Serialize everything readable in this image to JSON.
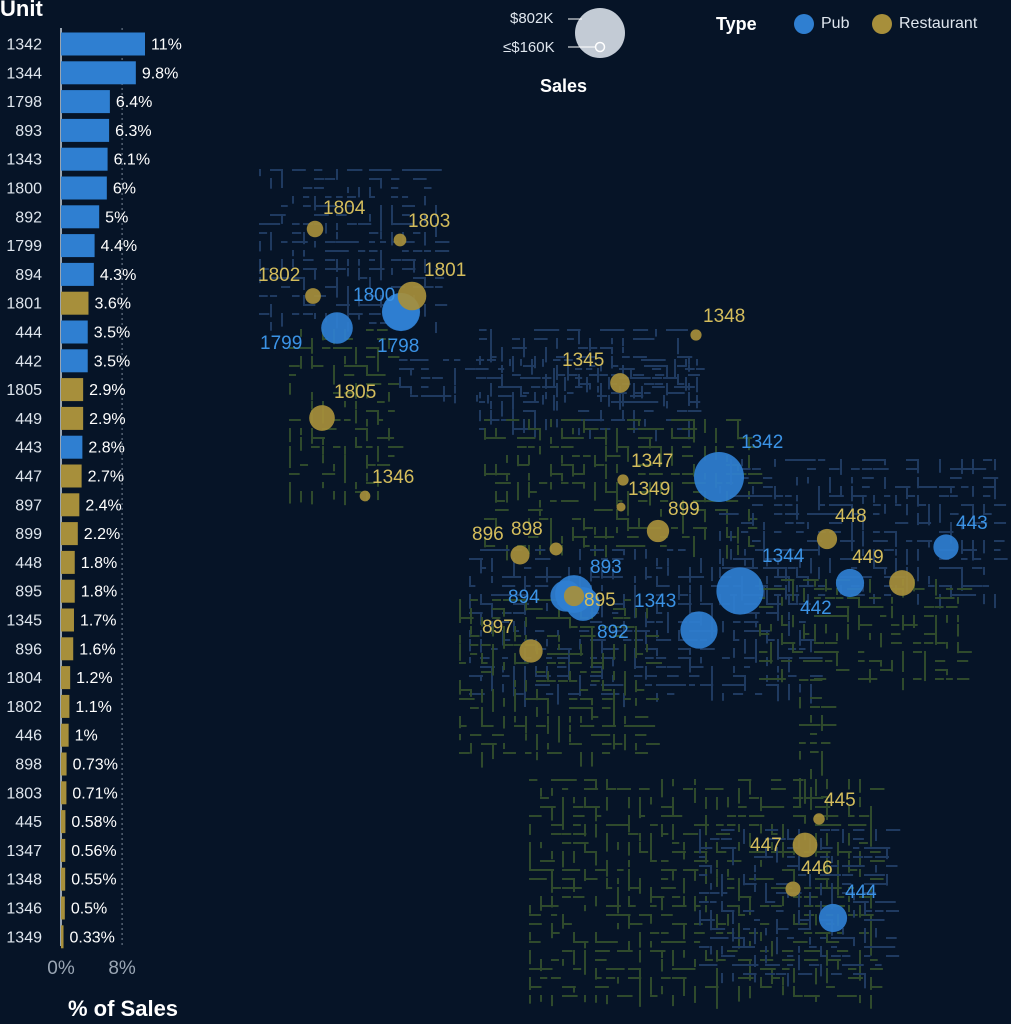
{
  "bar_panel": {
    "title": "Unit",
    "axis_title": "% of Sales",
    "tick_labels": [
      "0%",
      "8%"
    ]
  },
  "legend": {
    "title": "Type",
    "items": [
      {
        "label": "Pub",
        "color": "#2f7fd1"
      },
      {
        "label": "Restaurant",
        "color": "#a78f3b"
      }
    ]
  },
  "size_legend": {
    "title": "Sales",
    "max_label": "$802K",
    "min_label": "≤$160K"
  },
  "colors": {
    "background": "#061427",
    "pub": "#2f7fd1",
    "restaurant": "#a78f3b",
    "map_block_blue": "#1f3a60",
    "map_block_green": "#2f4a2c"
  },
  "chart_data": [
    {
      "type": "bar",
      "orientation": "horizontal",
      "title": "Unit",
      "xlabel": "% of Sales",
      "xlim": [
        0,
        12
      ],
      "x_ticks": [
        0,
        8
      ],
      "categories": [
        "1342",
        "1344",
        "1798",
        "893",
        "1343",
        "1800",
        "892",
        "1799",
        "894",
        "1801",
        "444",
        "442",
        "1805",
        "449",
        "443",
        "447",
        "897",
        "899",
        "448",
        "895",
        "1345",
        "896",
        "1804",
        "1802",
        "446",
        "898",
        "1803",
        "445",
        "1347",
        "1348",
        "1346",
        "1349"
      ],
      "values": [
        11,
        9.8,
        6.4,
        6.3,
        6.1,
        6,
        5,
        4.4,
        4.3,
        3.6,
        3.5,
        3.5,
        2.9,
        2.9,
        2.8,
        2.7,
        2.4,
        2.2,
        1.8,
        1.8,
        1.7,
        1.6,
        1.2,
        1.1,
        1,
        0.73,
        0.71,
        0.58,
        0.56,
        0.55,
        0.5,
        0.33
      ],
      "labels": [
        "11%",
        "9.8%",
        "6.4%",
        "6.3%",
        "6.1%",
        "6%",
        "5%",
        "4.4%",
        "4.3%",
        "3.6%",
        "3.5%",
        "3.5%",
        "2.9%",
        "2.9%",
        "2.8%",
        "2.7%",
        "2.4%",
        "2.2%",
        "1.8%",
        "1.8%",
        "1.7%",
        "1.6%",
        "1.2%",
        "1.1%",
        "1%",
        "0.73%",
        "0.71%",
        "0.58%",
        "0.56%",
        "0.55%",
        "0.5%",
        "0.33%"
      ],
      "types": [
        "Pub",
        "Pub",
        "Pub",
        "Pub",
        "Pub",
        "Pub",
        "Pub",
        "Pub",
        "Pub",
        "Restaurant",
        "Pub",
        "Pub",
        "Restaurant",
        "Restaurant",
        "Pub",
        "Restaurant",
        "Restaurant",
        "Restaurant",
        "Restaurant",
        "Restaurant",
        "Restaurant",
        "Restaurant",
        "Restaurant",
        "Restaurant",
        "Restaurant",
        "Restaurant",
        "Restaurant",
        "Restaurant",
        "Restaurant",
        "Restaurant",
        "Restaurant",
        "Restaurant"
      ]
    },
    {
      "type": "scatter",
      "title": "",
      "size_variable": "Sales",
      "color_variable": "Type",
      "legend_position": "top-right",
      "points": [
        {
          "label": "1342",
          "type": "Pub"
        },
        {
          "label": "1344",
          "type": "Pub"
        },
        {
          "label": "1798",
          "type": "Pub"
        },
        {
          "label": "893",
          "type": "Pub"
        },
        {
          "label": "1343",
          "type": "Pub"
        },
        {
          "label": "1800",
          "type": "Pub"
        },
        {
          "label": "892",
          "type": "Pub"
        },
        {
          "label": "1799",
          "type": "Pub"
        },
        {
          "label": "894",
          "type": "Pub"
        },
        {
          "label": "1801",
          "type": "Restaurant"
        },
        {
          "label": "444",
          "type": "Pub"
        },
        {
          "label": "442",
          "type": "Pub"
        },
        {
          "label": "1805",
          "type": "Restaurant"
        },
        {
          "label": "449",
          "type": "Restaurant"
        },
        {
          "label": "443",
          "type": "Pub"
        },
        {
          "label": "447",
          "type": "Restaurant"
        },
        {
          "label": "897",
          "type": "Restaurant"
        },
        {
          "label": "899",
          "type": "Restaurant"
        },
        {
          "label": "448",
          "type": "Restaurant"
        },
        {
          "label": "895",
          "type": "Restaurant"
        },
        {
          "label": "1345",
          "type": "Restaurant"
        },
        {
          "label": "896",
          "type": "Restaurant"
        },
        {
          "label": "1804",
          "type": "Restaurant"
        },
        {
          "label": "1802",
          "type": "Restaurant"
        },
        {
          "label": "446",
          "type": "Restaurant"
        },
        {
          "label": "898",
          "type": "Restaurant"
        },
        {
          "label": "1803",
          "type": "Restaurant"
        },
        {
          "label": "445",
          "type": "Restaurant"
        },
        {
          "label": "1347",
          "type": "Restaurant"
        },
        {
          "label": "1348",
          "type": "Restaurant"
        },
        {
          "label": "1346",
          "type": "Restaurant"
        },
        {
          "label": "1349",
          "type": "Restaurant"
        }
      ]
    }
  ]
}
